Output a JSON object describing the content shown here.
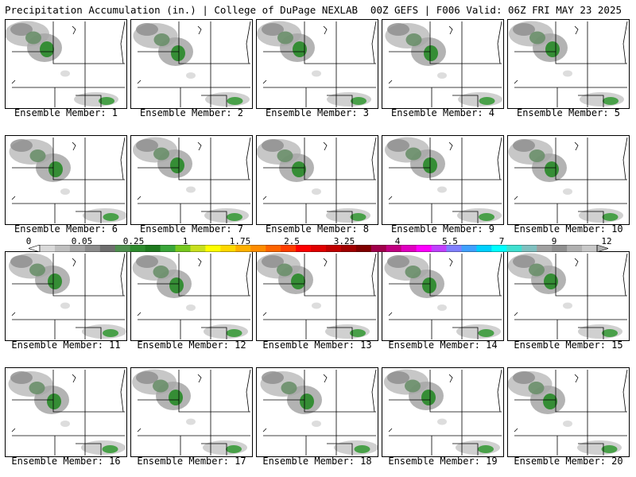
{
  "header": {
    "left": "Precipitation Accumulation (in.) | College of DuPage NEXLAB",
    "right": "00Z GEFS | F006 Valid: 06Z FRI MAY 23 2025"
  },
  "panels": [
    {
      "label": "Ensemble Member: 1"
    },
    {
      "label": "Ensemble Member: 2"
    },
    {
      "label": "Ensemble Member: 3"
    },
    {
      "label": "Ensemble Member: 4"
    },
    {
      "label": "Ensemble Member: 5"
    },
    {
      "label": "Ensemble Member: 6"
    },
    {
      "label": "Ensemble Member: 7"
    },
    {
      "label": "Ensemble Member: 8"
    },
    {
      "label": "Ensemble Member: 9"
    },
    {
      "label": "Ensemble Member: 10"
    },
    {
      "label": "Ensemble Member: 11"
    },
    {
      "label": "Ensemble Member: 12"
    },
    {
      "label": "Ensemble Member: 13"
    },
    {
      "label": "Ensemble Member: 14"
    },
    {
      "label": "Ensemble Member: 15"
    },
    {
      "label": "Ensemble Member: 16"
    },
    {
      "label": "Ensemble Member: 17"
    },
    {
      "label": "Ensemble Member: 18"
    },
    {
      "label": "Ensemble Member: 19"
    },
    {
      "label": "Ensemble Member: 20"
    }
  ],
  "colorbar": {
    "ticks": [
      "0",
      "0.05",
      "0.25",
      "1",
      "1.75",
      "2.5",
      "3.25",
      "4",
      "5.5",
      "7",
      "9",
      "12"
    ],
    "colors": [
      "#d9d9d9",
      "#bfbfbf",
      "#a6a6a6",
      "#8c8c8c",
      "#6e6e6e",
      "#4f8f4f",
      "#2e8b2e",
      "#1f7a1f",
      "#3aa63a",
      "#77c81f",
      "#c8e01f",
      "#ffff00",
      "#ffd800",
      "#ffb000",
      "#ff8c00",
      "#ff6400",
      "#ff3c00",
      "#ff0000",
      "#e00000",
      "#c00000",
      "#a00000",
      "#800000",
      "#a0004b",
      "#c00080",
      "#e000c0",
      "#ff00ff",
      "#c040ff",
      "#8080ff",
      "#40a0ff",
      "#00d0ff",
      "#00ffff",
      "#40e0d0",
      "#80c0c0",
      "#a0a0a0",
      "#909090",
      "#b0b0b0",
      "#c8c8c8"
    ]
  }
}
